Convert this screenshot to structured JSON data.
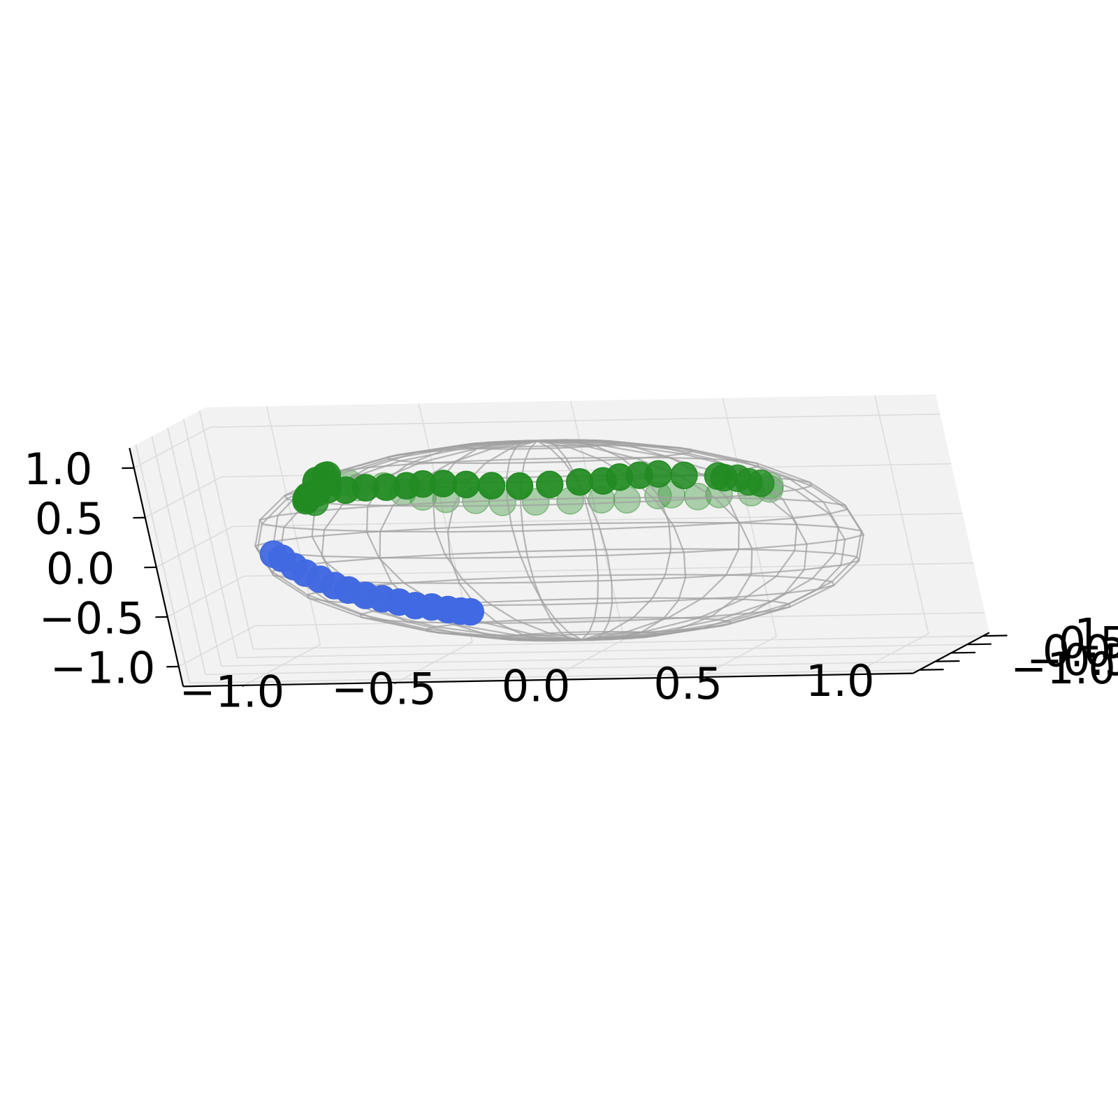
{
  "chart_data": {
    "type": "scatter",
    "projection": "3d",
    "title": "",
    "xlabel": "",
    "ylabel": "",
    "zlabel": "",
    "xlim": [
      -1.2,
      1.2
    ],
    "ylim": [
      -1.2,
      1.2
    ],
    "zlim": [
      -1.2,
      1.2
    ],
    "grid": true,
    "pane_color": "#f2f2f2",
    "wireframe": {
      "shape": "unit sphere",
      "color": "#a0a0a0",
      "meridians": 24,
      "parallels": 12
    },
    "x_ticks": [
      "−1.0",
      "−0.5",
      "0.0",
      "0.5",
      "1.0"
    ],
    "y_ticks": [
      "−1.0",
      "−0.5",
      "0.0",
      "0.5",
      "1.0"
    ],
    "z_ticks": [
      "−1.0",
      "−0.5",
      "0.0",
      "0.5",
      "1.0"
    ],
    "series": [
      {
        "color": "#228b22",
        "marker": "circle",
        "path": "curve on the sphere",
        "points": [
          [
            -0.72,
            -0.45,
            0.5
          ],
          [
            -0.76,
            -0.35,
            0.5
          ],
          [
            -0.77,
            -0.25,
            0.5
          ],
          [
            -0.78,
            -0.12,
            0.48
          ],
          [
            -0.79,
            -0.02,
            0.49
          ],
          [
            -0.79,
            0.08,
            0.49
          ],
          [
            -0.78,
            0.18,
            0.49
          ],
          [
            -0.75,
            0.25,
            0.51
          ],
          [
            -0.7,
            0.32,
            0.49
          ],
          [
            -0.64,
            0.38,
            0.5
          ],
          [
            -0.58,
            0.45,
            0.49
          ],
          [
            -0.52,
            0.51,
            0.49
          ],
          [
            -0.47,
            0.55,
            0.5
          ],
          [
            -0.41,
            0.61,
            0.49
          ],
          [
            -0.34,
            0.65,
            0.47
          ],
          [
            -0.26,
            0.67,
            0.45
          ],
          [
            -0.17,
            0.68,
            0.44
          ],
          [
            -0.07,
            0.68,
            0.45
          ],
          [
            0.03,
            0.68,
            0.47
          ],
          [
            0.11,
            0.66,
            0.48
          ],
          [
            0.17,
            0.63,
            0.52
          ],
          [
            0.24,
            0.6,
            0.54
          ],
          [
            0.31,
            0.54,
            0.56
          ],
          [
            0.4,
            0.48,
            0.55
          ],
          [
            0.52,
            0.4,
            0.55
          ],
          [
            0.55,
            0.3,
            0.55
          ],
          [
            0.6,
            0.25,
            0.55
          ],
          [
            0.64,
            0.2,
            0.52
          ],
          [
            0.69,
            0.1,
            0.52
          ],
          [
            0.73,
            0.0,
            0.51
          ],
          [
            0.75,
            -0.2,
            0.51
          ],
          [
            0.71,
            -0.4,
            0.51
          ],
          [
            0.62,
            -0.54,
            0.52
          ],
          [
            0.56,
            -0.64,
            0.52
          ],
          [
            0.48,
            -0.68,
            0.55
          ],
          [
            0.44,
            -0.72,
            0.55
          ],
          [
            0.34,
            -0.76,
            0.52
          ],
          [
            0.26,
            -0.79,
            0.53
          ],
          [
            0.16,
            -0.82,
            0.53
          ],
          [
            0.05,
            -0.85,
            0.53
          ],
          [
            -0.06,
            -0.84,
            0.53
          ],
          [
            -0.15,
            -0.81,
            0.55
          ],
          [
            -0.25,
            -0.78,
            0.56
          ],
          [
            -0.33,
            -0.73,
            0.58
          ],
          [
            -0.4,
            -0.66,
            0.62
          ],
          [
            -0.47,
            -0.56,
            0.67
          ],
          [
            -0.56,
            -0.51,
            0.65
          ],
          [
            -0.6,
            -0.41,
            0.68
          ],
          [
            -0.68,
            -0.31,
            0.67
          ],
          [
            -0.73,
            -0.21,
            0.66
          ],
          [
            -0.74,
            -0.1,
            0.66
          ],
          [
            -0.72,
            0.0,
            0.69
          ],
          [
            -0.71,
            -0.02,
            0.7
          ]
        ]
      },
      {
        "color": "#4169e1",
        "marker": "circle",
        "path": "arc",
        "points": [
          [
            -0.97,
            0.2,
            -0.12
          ],
          [
            -0.95,
            0.24,
            -0.17
          ],
          [
            -0.92,
            0.27,
            -0.26
          ],
          [
            -0.89,
            0.29,
            -0.33
          ],
          [
            -0.85,
            0.32,
            -0.4
          ],
          [
            -0.81,
            0.34,
            -0.47
          ],
          [
            -0.77,
            0.36,
            -0.52
          ],
          [
            -0.72,
            0.38,
            -0.58
          ],
          [
            -0.67,
            0.4,
            -0.62
          ],
          [
            -0.62,
            0.42,
            -0.66
          ],
          [
            -0.57,
            0.43,
            -0.7
          ],
          [
            -0.52,
            0.45,
            -0.72
          ],
          [
            -0.47,
            0.46,
            -0.75
          ],
          [
            -0.43,
            0.47,
            -0.77
          ],
          [
            -0.4,
            0.48,
            -0.78
          ]
        ]
      }
    ]
  }
}
